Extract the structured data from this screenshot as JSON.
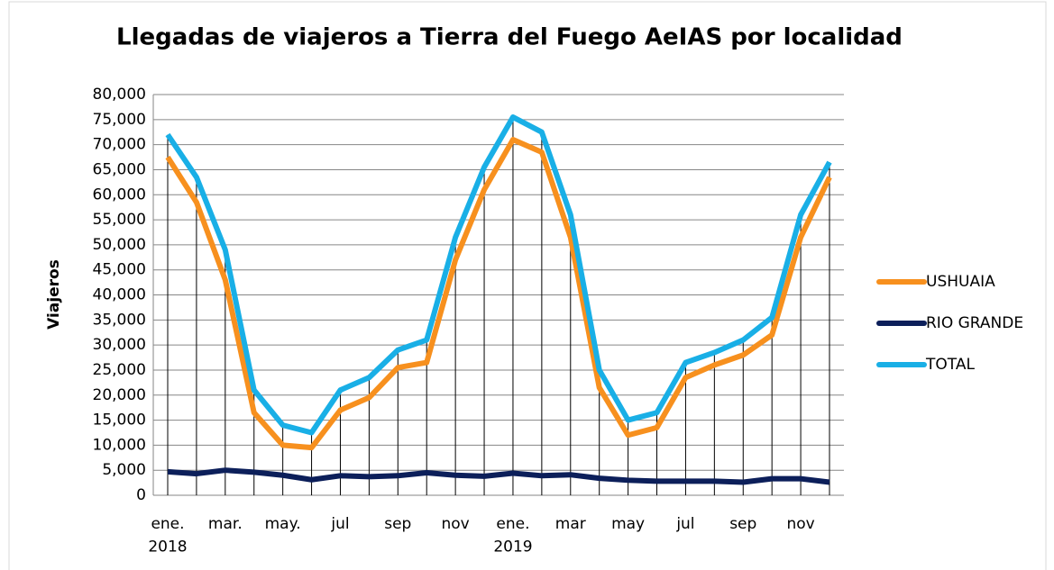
{
  "chart_data": {
    "type": "line",
    "title": "Llegadas de viajeros a Tierra del Fuego AeIAS por localidad",
    "y_label": "Viajeros",
    "categories": [
      "ene.\n2018",
      null,
      "mar.",
      null,
      "may.",
      null,
      "jul",
      null,
      "sep",
      null,
      "nov",
      null,
      "ene.\n2019",
      null,
      "mar",
      null,
      "may",
      null,
      "jul",
      null,
      "sep",
      null,
      "nov",
      null
    ],
    "series": [
      {
        "name": "USHUAIA",
        "color": "#f7901e",
        "values": [
          67500,
          58500,
          43000,
          16500,
          10000,
          9500,
          17000,
          19500,
          25500,
          26500,
          47000,
          61000,
          71000,
          68500,
          51500,
          21500,
          12000,
          13500,
          23500,
          26000,
          28000,
          32000,
          51500,
          63500
        ]
      },
      {
        "name": "RIO GRANDE",
        "color": "#0c1f5a",
        "values": [
          4700,
          4300,
          5000,
          4600,
          4000,
          3100,
          3900,
          3700,
          3900,
          4500,
          4000,
          3800,
          4400,
          3900,
          4100,
          3400,
          3000,
          2800,
          2800,
          2800,
          2600,
          3300,
          3300,
          2600
        ]
      },
      {
        "name": "TOTAL",
        "color": "#19afe6",
        "values": [
          72000,
          63500,
          49000,
          21000,
          14000,
          12500,
          21000,
          23500,
          29000,
          31000,
          51500,
          65500,
          75500,
          72500,
          56000,
          25000,
          15000,
          16500,
          26500,
          28500,
          31000,
          35500,
          56000,
          66500
        ]
      }
    ],
    "ylim": [
      0,
      80000
    ],
    "yticks": [
      0,
      {
        "value": 5000,
        "label": "5,000"
      },
      {
        "value": 10000,
        "label": "10,000"
      },
      {
        "value": 15000,
        "label": "15,000"
      },
      {
        "value": 20000,
        "label": "20,000"
      },
      {
        "value": 25000,
        "label": "25,000"
      },
      {
        "value": 30000,
        "label": "30,000"
      },
      {
        "value": 35000,
        "label": "35,000"
      },
      {
        "value": 40000,
        "label": "40,000"
      },
      {
        "value": 45000,
        "label": "45,000"
      },
      {
        "value": 50000,
        "label": "50,000"
      },
      {
        "value": 55000,
        "label": "55,000"
      },
      {
        "value": 60000,
        "label": "60,000"
      },
      {
        "value": 65000,
        "label": "65,000"
      },
      {
        "value": 70000,
        "label": "70,000"
      },
      {
        "value": 75000,
        "label": "75,000"
      },
      {
        "value": 80000,
        "label": "80,000"
      }
    ],
    "grid": true,
    "drop_lines": true,
    "legend": "right"
  }
}
